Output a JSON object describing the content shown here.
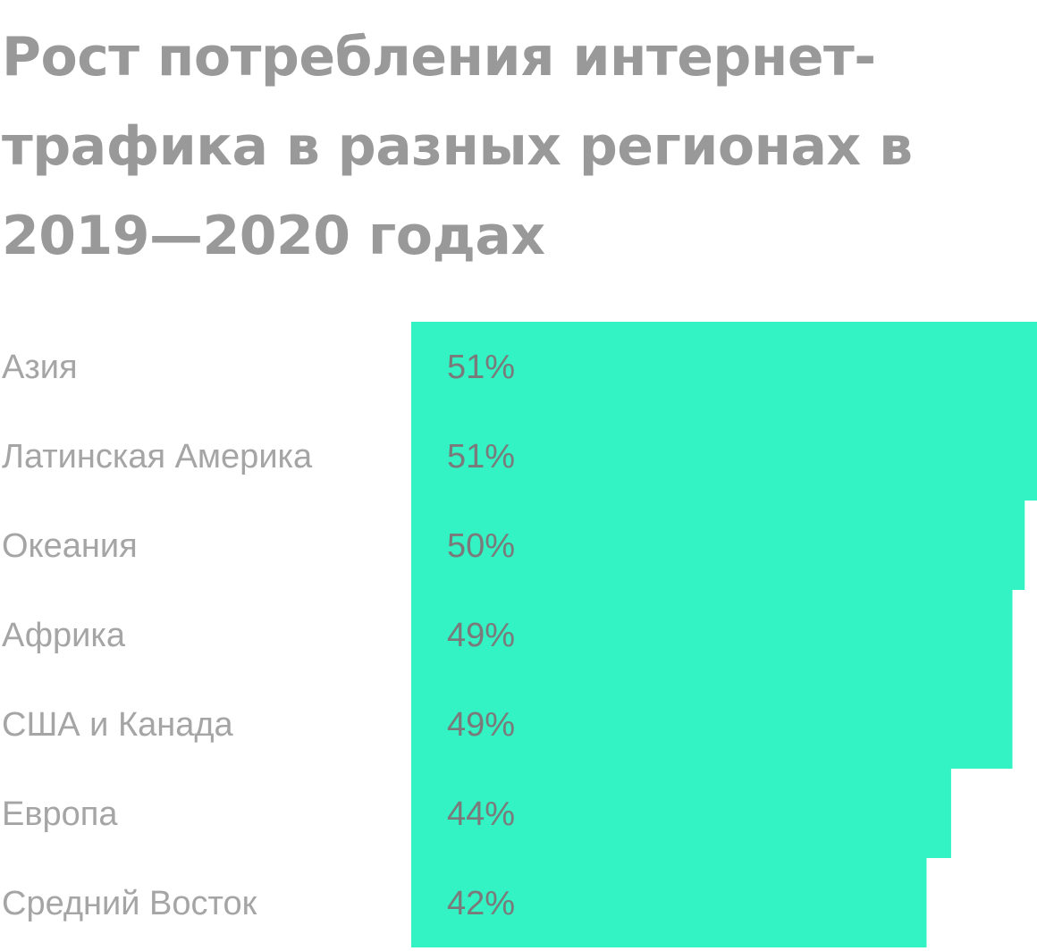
{
  "chart_data": {
    "type": "bar",
    "orientation": "horizontal",
    "title": "Рост потребления интернет-трафика в разных регионах в 2019—2020 годах",
    "categories": [
      "Азия",
      "Латинская Америка",
      "Океания",
      "Африка",
      "США и Канада",
      "Европа",
      "Средний Восток"
    ],
    "values": [
      51,
      51,
      50,
      49,
      49,
      44,
      42
    ],
    "value_labels": [
      "51%",
      "51%",
      "50%",
      "49%",
      "49%",
      "44%",
      "42%"
    ],
    "unit": "%",
    "bar_color": "#33f2c4",
    "grid": false,
    "legend": "none"
  }
}
